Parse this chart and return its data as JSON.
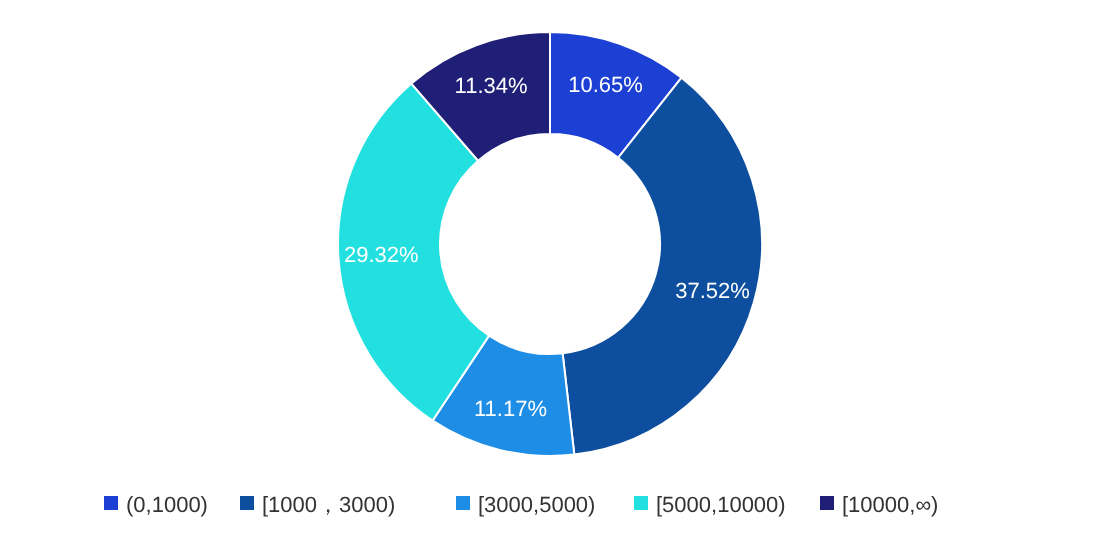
{
  "chart_data": {
    "type": "donut",
    "categories": [
      "(0,1000)",
      "[1000，3000)",
      "[3000,5000)",
      "[5000,10000)",
      "[10000,∞)"
    ],
    "values": [
      10.65,
      37.52,
      11.17,
      29.32,
      11.34
    ],
    "colors": [
      "#1c3fd4",
      "#0d4f9e",
      "#1e8de6",
      "#22dfe0",
      "#1f1f78"
    ],
    "value_labels": [
      "10.65%",
      "37.52%",
      "11.17%",
      "29.32%",
      "11.34%"
    ],
    "legend": "bottom"
  }
}
